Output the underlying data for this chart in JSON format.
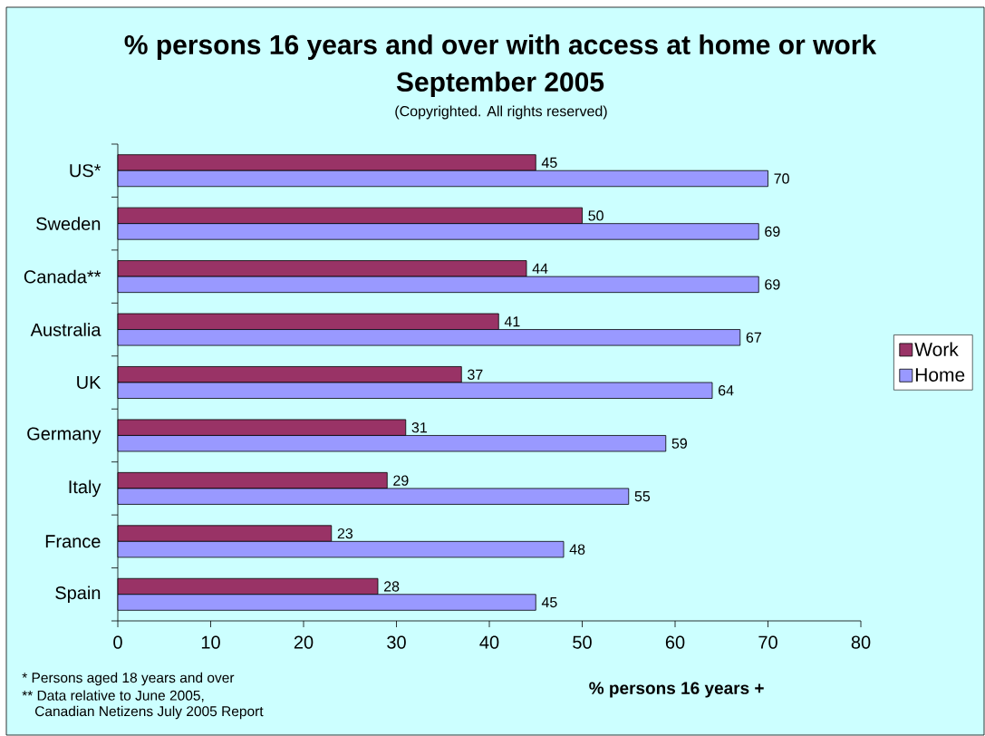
{
  "chart_data": {
    "type": "bar",
    "orientation": "horizontal",
    "title": "% persons 16 years and over with access at home or work",
    "subtitle": "September 2005",
    "annotations": [
      "(Copyrighted. All rights reserved)",
      "* Persons aged 18 years and over",
      "** Data relative to June 2005,",
      "Canadian Netizens July 2005 Report"
    ],
    "xlabel": "% persons 16 years +",
    "categories": [
      "US*",
      "Sweden",
      "Canada**",
      "Australia",
      "UK",
      "Germany",
      "Italy",
      "France",
      "Spain"
    ],
    "series": [
      {
        "name": "Work",
        "color": "#993366",
        "values": [
          45,
          50,
          44,
          41,
          37,
          31,
          29,
          23,
          28
        ]
      },
      {
        "name": "Home",
        "color": "#9999ff",
        "values": [
          70,
          69,
          69,
          67,
          64,
          59,
          55,
          48,
          45
        ]
      }
    ],
    "xlim": [
      0,
      80
    ],
    "xticks": [
      0,
      10,
      20,
      30,
      40,
      50,
      60,
      70,
      80
    ],
    "data_labels": true,
    "legend": "right"
  }
}
